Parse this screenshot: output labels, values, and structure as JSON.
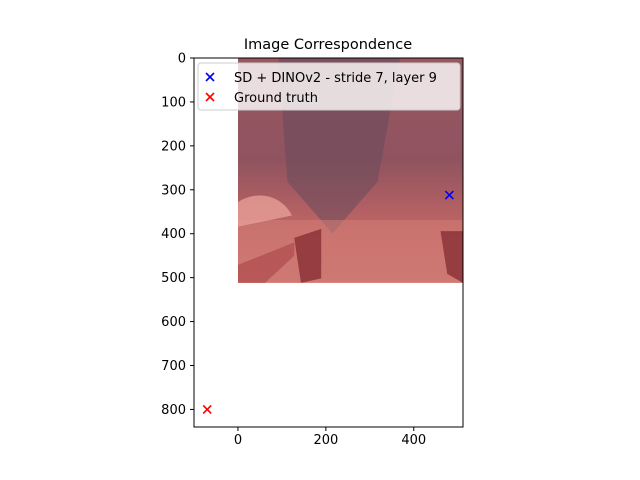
{
  "chart_data": {
    "type": "scatter",
    "title": "Image Correspondence",
    "xlabel": "",
    "ylabel": "",
    "xlim": [
      -100,
      512
    ],
    "ylim": [
      840,
      0
    ],
    "y_inverted": true,
    "xticks": [
      0,
      200,
      400
    ],
    "yticks": [
      0,
      100,
      200,
      300,
      400,
      500,
      600,
      700,
      800
    ],
    "grid": false,
    "legend_position": "top-left",
    "background_image": {
      "description_only": false,
      "extent": [
        0,
        512,
        512,
        0
      ],
      "tint": "#e05050"
    },
    "series": [
      {
        "name": "SD + DINOv2 - stride 7, layer 9",
        "marker": "x",
        "color": "#0000ff",
        "x": [
          481
        ],
        "y": [
          312
        ]
      },
      {
        "name": "Ground truth",
        "marker": "x",
        "color": "#ff0000",
        "x": [
          -70
        ],
        "y": [
          800
        ]
      }
    ]
  }
}
